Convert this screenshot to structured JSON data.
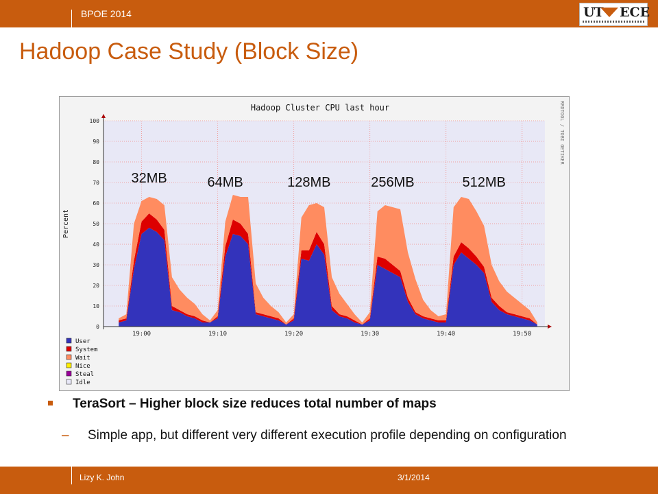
{
  "header": {
    "conference": "BPOE 2014",
    "logo_left": "UT",
    "logo_right": "ECE"
  },
  "slide_title": "Hadoop Case Study (Block Size)",
  "chart_data": {
    "type": "area",
    "title": "Hadoop Cluster CPU last hour",
    "ylabel": "Percent",
    "ylim": [
      0,
      100
    ],
    "yticks": [
      0,
      10,
      20,
      30,
      40,
      50,
      60,
      70,
      80,
      90,
      100
    ],
    "xlim": [
      "18:55",
      "19:53"
    ],
    "xticks": [
      "19:00",
      "19:10",
      "19:20",
      "19:30",
      "19:40",
      "19:50"
    ],
    "watermark": "RRDTOOL / TOBI OETIKER",
    "grid": true,
    "legend_position": "bottom-left",
    "colors": {
      "User": "#3333bb",
      "System": "#dd0000",
      "Wait": "#ff8c60",
      "Nice": "#ffee00",
      "Steal": "#990099",
      "Idle": "#e8e8f8",
      "plot_bg": "#e8e8f6",
      "grid": "#f0a0a0"
    },
    "series": [
      {
        "name": "User",
        "x": [
          "18:57",
          "18:58",
          "18:59",
          "19:00",
          "19:01",
          "19:02",
          "19:03",
          "19:04",
          "19:05",
          "19:06",
          "19:07",
          "19:08",
          "19:09",
          "19:10",
          "19:11",
          "19:12",
          "19:13",
          "19:14",
          "19:15",
          "19:16",
          "19:17",
          "19:18",
          "19:19",
          "19:20",
          "19:21",
          "19:22",
          "19:23",
          "19:24",
          "19:25",
          "19:26",
          "19:27",
          "19:28",
          "19:29",
          "19:30",
          "19:31",
          "19:32",
          "19:33",
          "19:34",
          "19:35",
          "19:36",
          "19:37",
          "19:38",
          "19:39",
          "19:40",
          "19:41",
          "19:42",
          "19:43",
          "19:44",
          "19:45",
          "19:46",
          "19:47",
          "19:48",
          "19:49",
          "19:50",
          "19:51",
          "19:52"
        ],
        "values": [
          2,
          3,
          28,
          45,
          48,
          46,
          42,
          8,
          7,
          5,
          4,
          2,
          2,
          4,
          34,
          45,
          44,
          40,
          6,
          5,
          4,
          3,
          1,
          3,
          33,
          32,
          40,
          35,
          8,
          5,
          4,
          2,
          1,
          3,
          30,
          28,
          26,
          24,
          12,
          6,
          4,
          3,
          2,
          2,
          30,
          36,
          33,
          30,
          26,
          12,
          8,
          6,
          5,
          4,
          3,
          1
        ]
      },
      {
        "name": "System",
        "x": [
          "18:57",
          "18:58",
          "18:59",
          "19:00",
          "19:01",
          "19:02",
          "19:03",
          "19:04",
          "19:05",
          "19:06",
          "19:07",
          "19:08",
          "19:09",
          "19:10",
          "19:11",
          "19:12",
          "19:13",
          "19:14",
          "19:15",
          "19:16",
          "19:17",
          "19:18",
          "19:19",
          "19:20",
          "19:21",
          "19:22",
          "19:23",
          "19:24",
          "19:25",
          "19:26",
          "19:27",
          "19:28",
          "19:29",
          "19:30",
          "19:31",
          "19:32",
          "19:33",
          "19:34",
          "19:35",
          "19:36",
          "19:37",
          "19:38",
          "19:39",
          "19:40",
          "19:41",
          "19:42",
          "19:43",
          "19:44",
          "19:45",
          "19:46",
          "19:47",
          "19:48",
          "19:49",
          "19:50",
          "19:51",
          "19:52"
        ],
        "values": [
          1,
          1,
          4,
          6,
          7,
          6,
          5,
          2,
          1,
          1,
          1,
          1,
          0,
          1,
          5,
          7,
          6,
          5,
          1,
          1,
          1,
          1,
          0,
          1,
          4,
          5,
          6,
          5,
          2,
          1,
          1,
          1,
          0,
          1,
          4,
          5,
          4,
          3,
          2,
          1,
          1,
          1,
          1,
          1,
          4,
          5,
          5,
          4,
          3,
          2,
          2,
          1,
          1,
          1,
          1,
          0
        ]
      },
      {
        "name": "Wait",
        "x": [
          "18:57",
          "18:58",
          "18:59",
          "19:00",
          "19:01",
          "19:02",
          "19:03",
          "19:04",
          "19:05",
          "19:06",
          "19:07",
          "19:08",
          "19:09",
          "19:10",
          "19:11",
          "19:12",
          "19:13",
          "19:14",
          "19:15",
          "19:16",
          "19:17",
          "19:18",
          "19:19",
          "19:20",
          "19:21",
          "19:22",
          "19:23",
          "19:24",
          "19:25",
          "19:26",
          "19:27",
          "19:28",
          "19:29",
          "19:30",
          "19:31",
          "19:32",
          "19:33",
          "19:34",
          "19:35",
          "19:36",
          "19:37",
          "19:38",
          "19:39",
          "19:40",
          "19:41",
          "19:42",
          "19:43",
          "19:44",
          "19:45",
          "19:46",
          "19:47",
          "19:48",
          "19:49",
          "19:50",
          "19:51",
          "19:52"
        ],
        "values": [
          1,
          2,
          18,
          10,
          8,
          10,
          12,
          14,
          10,
          8,
          6,
          3,
          1,
          3,
          12,
          12,
          13,
          18,
          14,
          8,
          5,
          3,
          1,
          2,
          16,
          22,
          14,
          18,
          14,
          10,
          6,
          3,
          1,
          3,
          22,
          26,
          28,
          30,
          22,
          16,
          8,
          4,
          2,
          3,
          24,
          22,
          24,
          22,
          20,
          16,
          12,
          10,
          8,
          6,
          4,
          1
        ]
      },
      {
        "name": "Nice",
        "values": []
      },
      {
        "name": "Steal",
        "values": []
      },
      {
        "name": "Idle",
        "values": []
      }
    ],
    "annotations": [
      {
        "label": "32MB",
        "x": "19:01",
        "y": 70
      },
      {
        "label": "64MB",
        "x": "19:11",
        "y": 68
      },
      {
        "label": "128MB",
        "x": "19:22",
        "y": 68
      },
      {
        "label": "256MB",
        "x": "19:33",
        "y": 68
      },
      {
        "label": "512MB",
        "x": "19:45",
        "y": 68
      }
    ]
  },
  "bullet": "TeraSort – Higher block size reduces total number of maps",
  "sub_bullet": "Simple app, but different very different execution profile depending on configuration",
  "footer": {
    "author": "Lizy K. John",
    "date": "3/1/2014"
  }
}
